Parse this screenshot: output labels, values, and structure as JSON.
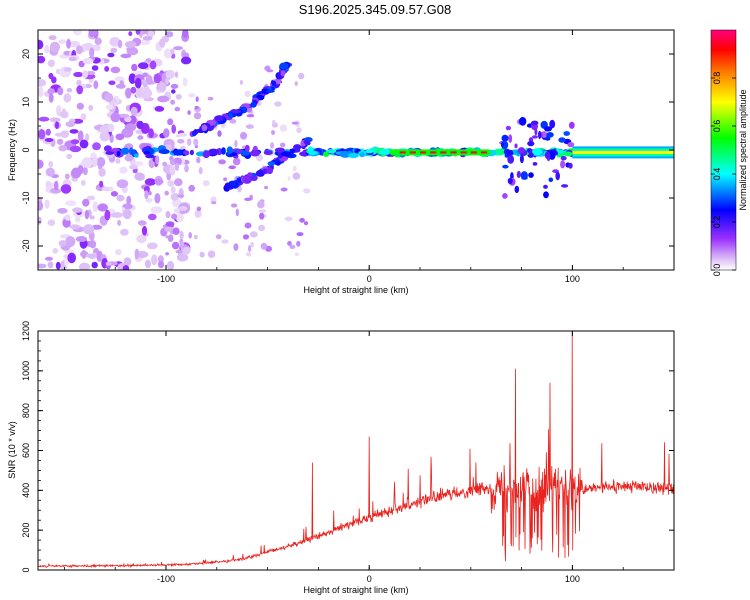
{
  "title": "S196.2025.345.09.57.G08",
  "chart_data": [
    {
      "type": "heatmap",
      "title": "S196.2025.345.09.57.G08",
      "xlabel": "Height of straight line (km)",
      "ylabel": "Frequency (Hz)",
      "xlim": [
        -163,
        150
      ],
      "ylim": [
        -25,
        25
      ],
      "xticks": [
        -100,
        0,
        100
      ],
      "yticks": [
        -20,
        -10,
        0,
        10,
        20
      ],
      "colorbar": {
        "label": "Normalized spectral amplitude",
        "range": [
          0,
          1
        ],
        "ticks": [
          "0.0",
          "0.2",
          "0.4",
          "0.6",
          "0.8"
        ],
        "colors": [
          "#ffffff",
          "#d9b8f5",
          "#9b30ff",
          "#0000ff",
          "#00ffff",
          "#00ff00",
          "#ffff00",
          "#ff8000",
          "#ff0000",
          "#ff0080"
        ]
      },
      "features": [
        {
          "name": "main frequency band",
          "x_range": [
            -130,
            150
          ],
          "freq": -0.5,
          "peak_amplitude": 0.95
        },
        {
          "name": "rising branch",
          "x": [
            -88,
            -75,
            -60,
            -48,
            -40
          ],
          "freq": [
            3,
            6,
            9,
            13,
            18
          ]
        },
        {
          "name": "falling branch",
          "x": [
            -70,
            -60,
            -50,
            -40,
            -30
          ],
          "freq": [
            -8,
            -6,
            -4,
            -1,
            2
          ]
        },
        {
          "name": "noise region",
          "x_range": [
            -163,
            -100
          ],
          "freq_range": [
            -25,
            25
          ]
        }
      ]
    },
    {
      "type": "line",
      "xlabel": "Height of straight line (km)",
      "ylabel": "SNR (10 * v/v)",
      "xlim": [
        -163,
        150
      ],
      "ylim": [
        0,
        1200
      ],
      "xticks": [
        -100,
        0,
        100
      ],
      "yticks": [
        0,
        200,
        400,
        600,
        800,
        1000,
        1200
      ],
      "color": "#e8221e",
      "envelope": {
        "x": [
          -163,
          -140,
          -120,
          -100,
          -90,
          -80,
          -70,
          -60,
          -50,
          -40,
          -30,
          -20,
          -10,
          0,
          10,
          20,
          30,
          40,
          50,
          60,
          70,
          80,
          90,
          100,
          110,
          120,
          130,
          140,
          150
        ],
        "baseline": [
          20,
          20,
          22,
          25,
          30,
          35,
          45,
          60,
          90,
          120,
          150,
          190,
          230,
          260,
          300,
          330,
          360,
          380,
          400,
          410,
          420,
          420,
          400,
          380,
          410,
          420,
          420,
          415,
          410
        ]
      },
      "spikes": [
        {
          "x": -28,
          "y": 540
        },
        {
          "x": 0,
          "y": 670
        },
        {
          "x": 72,
          "y": 1010
        },
        {
          "x": 89,
          "y": 940
        },
        {
          "x": 100,
          "y": 1200
        }
      ]
    }
  ]
}
